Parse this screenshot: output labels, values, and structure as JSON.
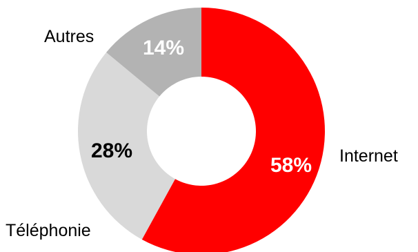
{
  "chart_data": {
    "type": "pie",
    "donut": true,
    "title": "",
    "legend": "none",
    "categories": [
      "Internet",
      "Téléphonie",
      "Autres"
    ],
    "values": [
      58,
      28,
      14
    ],
    "value_labels": [
      "58%",
      "28%",
      "14%"
    ],
    "colors": [
      "#ff0000",
      "#d9d9d9",
      "#b3b3b3"
    ],
    "value_label_colors": [
      "#ffffff",
      "#000000",
      "#ffffff"
    ]
  }
}
